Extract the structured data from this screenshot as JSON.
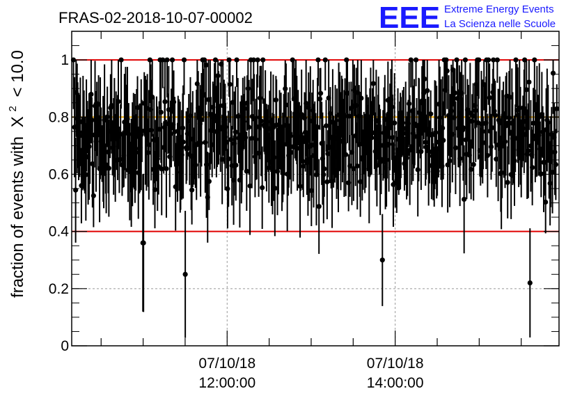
{
  "title": "FRAS-02-2018-10-07-00002",
  "logo": {
    "mark": "EEE",
    "line1": "Extreme Energy Events",
    "line2": "La Scienza nelle Scuole",
    "color": "#1a1aff"
  },
  "chart_data": {
    "type": "scatter",
    "title": "FRAS-02-2018-10-07-00002",
    "ylabel_prefix": "fraction of events with",
    "ylabel_symbol": "X",
    "ylabel_sup": "2",
    "ylabel_suffix": "< 10.0",
    "ylim": [
      0,
      1.1
    ],
    "xlim_hours": [
      10.15,
      15.95
    ],
    "y_ticks": [
      "0",
      "0.2",
      "0.4",
      "0.6",
      "0.8",
      "1"
    ],
    "y_tick_values": [
      0,
      0.2,
      0.4,
      0.6,
      0.8,
      1.0
    ],
    "x_ticks": [
      {
        "hour": 12.0,
        "date": "07/10/18",
        "time": "12:00:00"
      },
      {
        "hour": 14.0,
        "date": "07/10/18",
        "time": "14:00:00"
      }
    ],
    "reference_lines": [
      {
        "y": 1.0,
        "color": "#e00000"
      },
      {
        "y": 0.8,
        "color": "#ffb000"
      },
      {
        "y": 0.4,
        "color": "#e00000"
      }
    ],
    "grid": true,
    "n_points": 560,
    "notable_points": [
      {
        "hour": 11.0,
        "y": 0.36
      },
      {
        "hour": 11.5,
        "y": 0.25
      },
      {
        "hour": 13.85,
        "y": 0.3
      },
      {
        "hour": 15.6,
        "y": 0.22
      }
    ]
  }
}
